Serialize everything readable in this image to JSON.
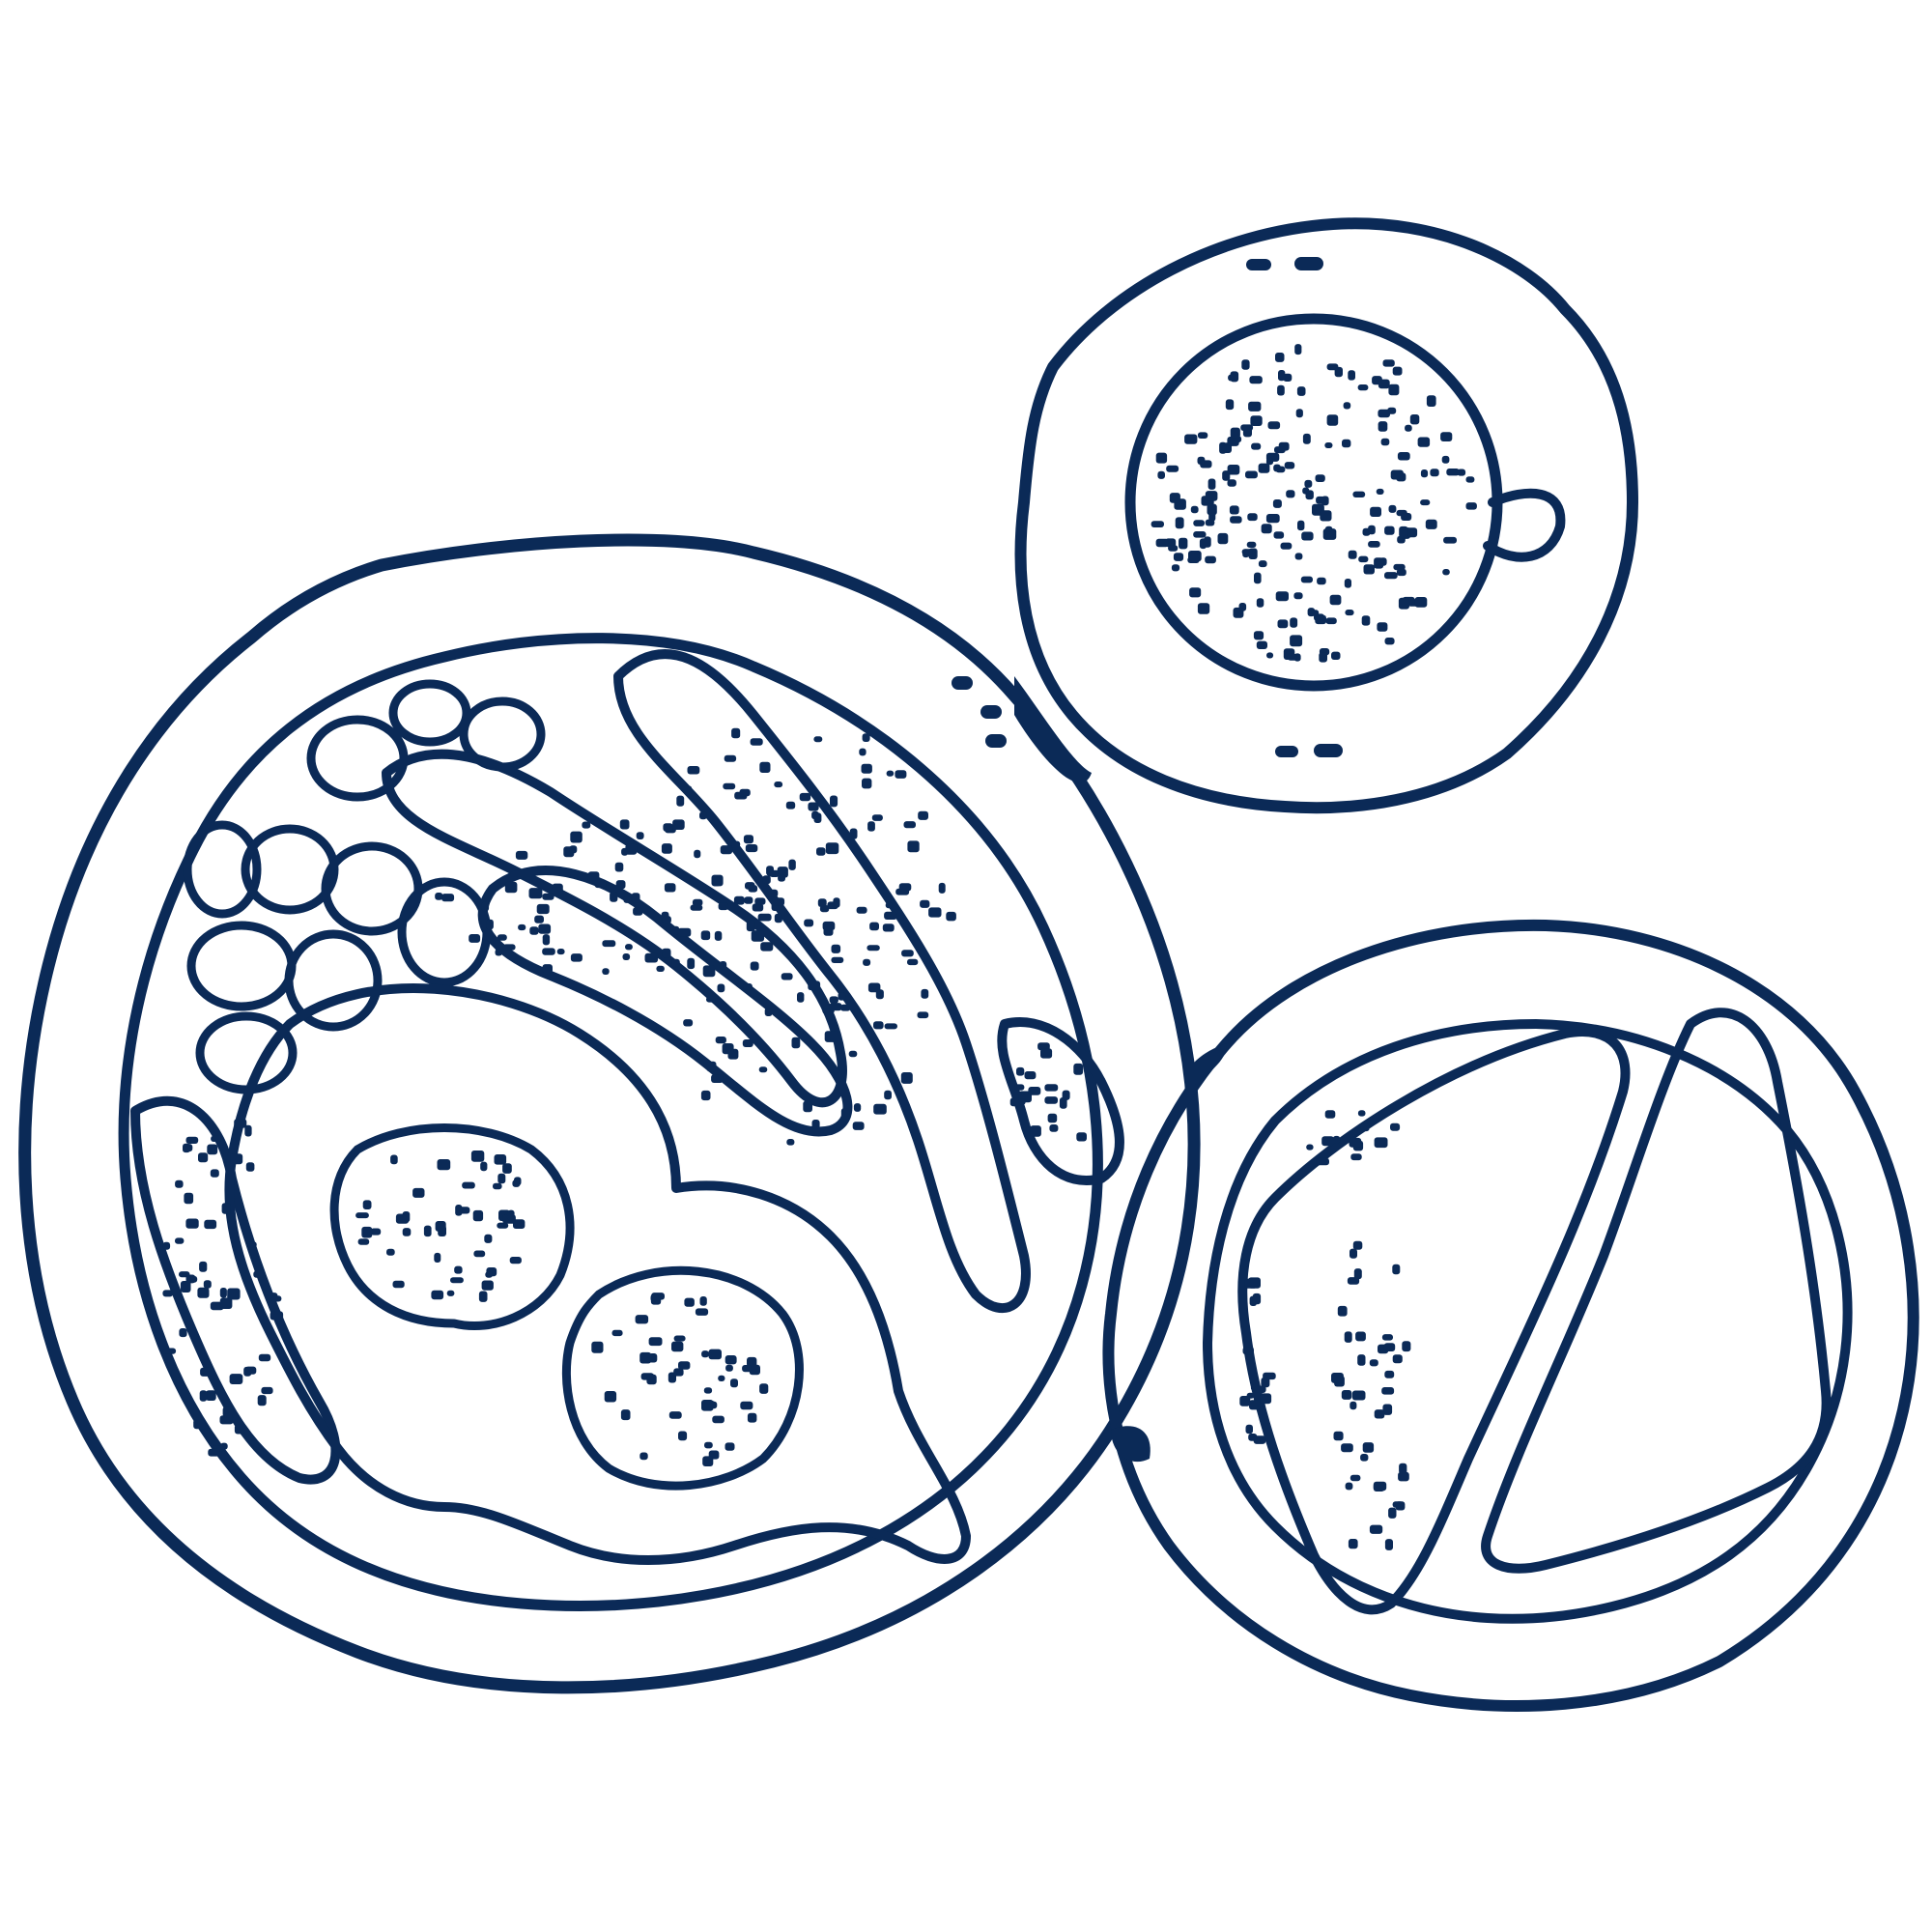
{
  "illustration": {
    "subject": "breakfast-table-top-view",
    "palette": {
      "ink": "#0b2a57",
      "paper": "#ffffff"
    },
    "items": [
      {
        "name": "breakfast-plate",
        "contents": [
          "fried-egg",
          "fried-egg",
          "bacon-strip",
          "bacon-strip",
          "bacon-strip",
          "bacon-strip",
          "baked-beans",
          "toast-crust"
        ]
      },
      {
        "name": "coffee-cup",
        "contents": [
          "coffee",
          "cup-handle",
          "saucer"
        ]
      },
      {
        "name": "toast-plate",
        "contents": [
          "toast-triangle",
          "toast-triangle"
        ]
      }
    ]
  }
}
